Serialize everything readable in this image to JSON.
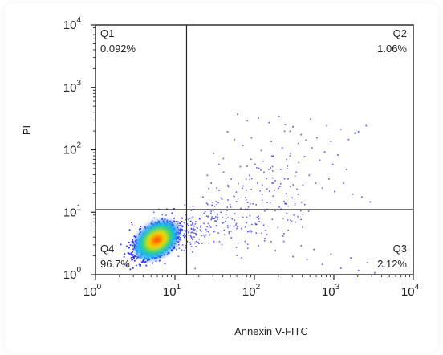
{
  "chart_data": {
    "type": "scatter",
    "x_axis": {
      "label": "Annexin V-FITC",
      "scale": "log",
      "range": [
        1,
        10000
      ],
      "ticks": [
        {
          "value": 1,
          "base": "10",
          "exp": "0"
        },
        {
          "value": 10,
          "base": "10",
          "exp": "1"
        },
        {
          "value": 100,
          "base": "10",
          "exp": "2"
        },
        {
          "value": 1000,
          "base": "10",
          "exp": "3"
        },
        {
          "value": 10000,
          "base": "10",
          "exp": "4"
        }
      ]
    },
    "y_axis": {
      "label": "PI",
      "scale": "log",
      "range": [
        1,
        10000
      ],
      "ticks": [
        {
          "value": 1,
          "base": "10",
          "exp": "0"
        },
        {
          "value": 10,
          "base": "10",
          "exp": "1"
        },
        {
          "value": 100,
          "base": "10",
          "exp": "2"
        },
        {
          "value": 1000,
          "base": "10",
          "exp": "3"
        },
        {
          "value": 10000,
          "base": "10",
          "exp": "4"
        }
      ]
    },
    "gates": {
      "x": 14,
      "y": 11
    },
    "quadrants": [
      {
        "id": "Q1",
        "percent": "0.092%",
        "corner": "top-left"
      },
      {
        "id": "Q2",
        "percent": "1.06%",
        "corner": "top-right"
      },
      {
        "id": "Q3",
        "percent": "2.12%",
        "corner": "bottom-right"
      },
      {
        "id": "Q4",
        "percent": "96.7%",
        "corner": "bottom-left"
      }
    ],
    "population": {
      "main_cluster_center": [
        5.5,
        3.5
      ],
      "color_scale": [
        "#2c2cf0",
        "#00c8ff",
        "#00e060",
        "#ffe000",
        "#ff2000"
      ]
    },
    "scatter_points": [
      [
        60,
        380
      ],
      [
        80,
        300
      ],
      [
        110,
        330
      ],
      [
        150,
        280
      ],
      [
        200,
        350
      ],
      [
        240,
        260
      ],
      [
        300,
        240
      ],
      [
        380,
        180
      ],
      [
        500,
        320
      ],
      [
        600,
        160
      ],
      [
        800,
        250
      ],
      [
        900,
        140
      ],
      [
        1200,
        220
      ],
      [
        1500,
        150
      ],
      [
        2000,
        200
      ],
      [
        2500,
        250
      ],
      [
        1800,
        190
      ],
      [
        45,
        200
      ],
      [
        55,
        150
      ],
      [
        70,
        120
      ],
      [
        90,
        160
      ],
      [
        120,
        100
      ],
      [
        160,
        140
      ],
      [
        220,
        110
      ],
      [
        280,
        90
      ],
      [
        350,
        130
      ],
      [
        420,
        80
      ],
      [
        520,
        110
      ],
      [
        650,
        70
      ],
      [
        750,
        95
      ],
      [
        950,
        60
      ],
      [
        1100,
        85
      ],
      [
        1400,
        50
      ],
      [
        30,
        90
      ],
      [
        35,
        60
      ],
      [
        40,
        45
      ],
      [
        25,
        40
      ],
      [
        28,
        30
      ],
      [
        33,
        25
      ],
      [
        50,
        35
      ],
      [
        65,
        55
      ],
      [
        85,
        40
      ],
      [
        100,
        60
      ],
      [
        130,
        45
      ],
      [
        170,
        30
      ],
      [
        210,
        50
      ],
      [
        260,
        35
      ],
      [
        330,
        45
      ],
      [
        400,
        28
      ],
      [
        480,
        40
      ],
      [
        580,
        30
      ],
      [
        700,
        25
      ],
      [
        850,
        35
      ],
      [
        1000,
        22
      ],
      [
        1300,
        30
      ],
      [
        1700,
        20
      ],
      [
        2200,
        18
      ],
      [
        2800,
        15
      ],
      [
        20,
        8
      ],
      [
        25,
        6
      ],
      [
        30,
        5
      ],
      [
        40,
        7
      ],
      [
        50,
        4
      ],
      [
        60,
        6
      ],
      [
        75,
        3.5
      ],
      [
        90,
        5
      ],
      [
        110,
        3
      ],
      [
        140,
        4.5
      ],
      [
        180,
        2.5
      ],
      [
        230,
        3.5
      ],
      [
        300,
        2
      ],
      [
        380,
        3
      ],
      [
        450,
        1.8
      ],
      [
        550,
        2.6
      ],
      [
        700,
        1.5
      ],
      [
        900,
        2.2
      ],
      [
        1200,
        1.3
      ],
      [
        1600,
        1.9
      ],
      [
        2000,
        1.2
      ],
      [
        2600,
        1.6
      ],
      [
        3200,
        1.1
      ],
      [
        4000,
        1.4
      ]
    ]
  }
}
